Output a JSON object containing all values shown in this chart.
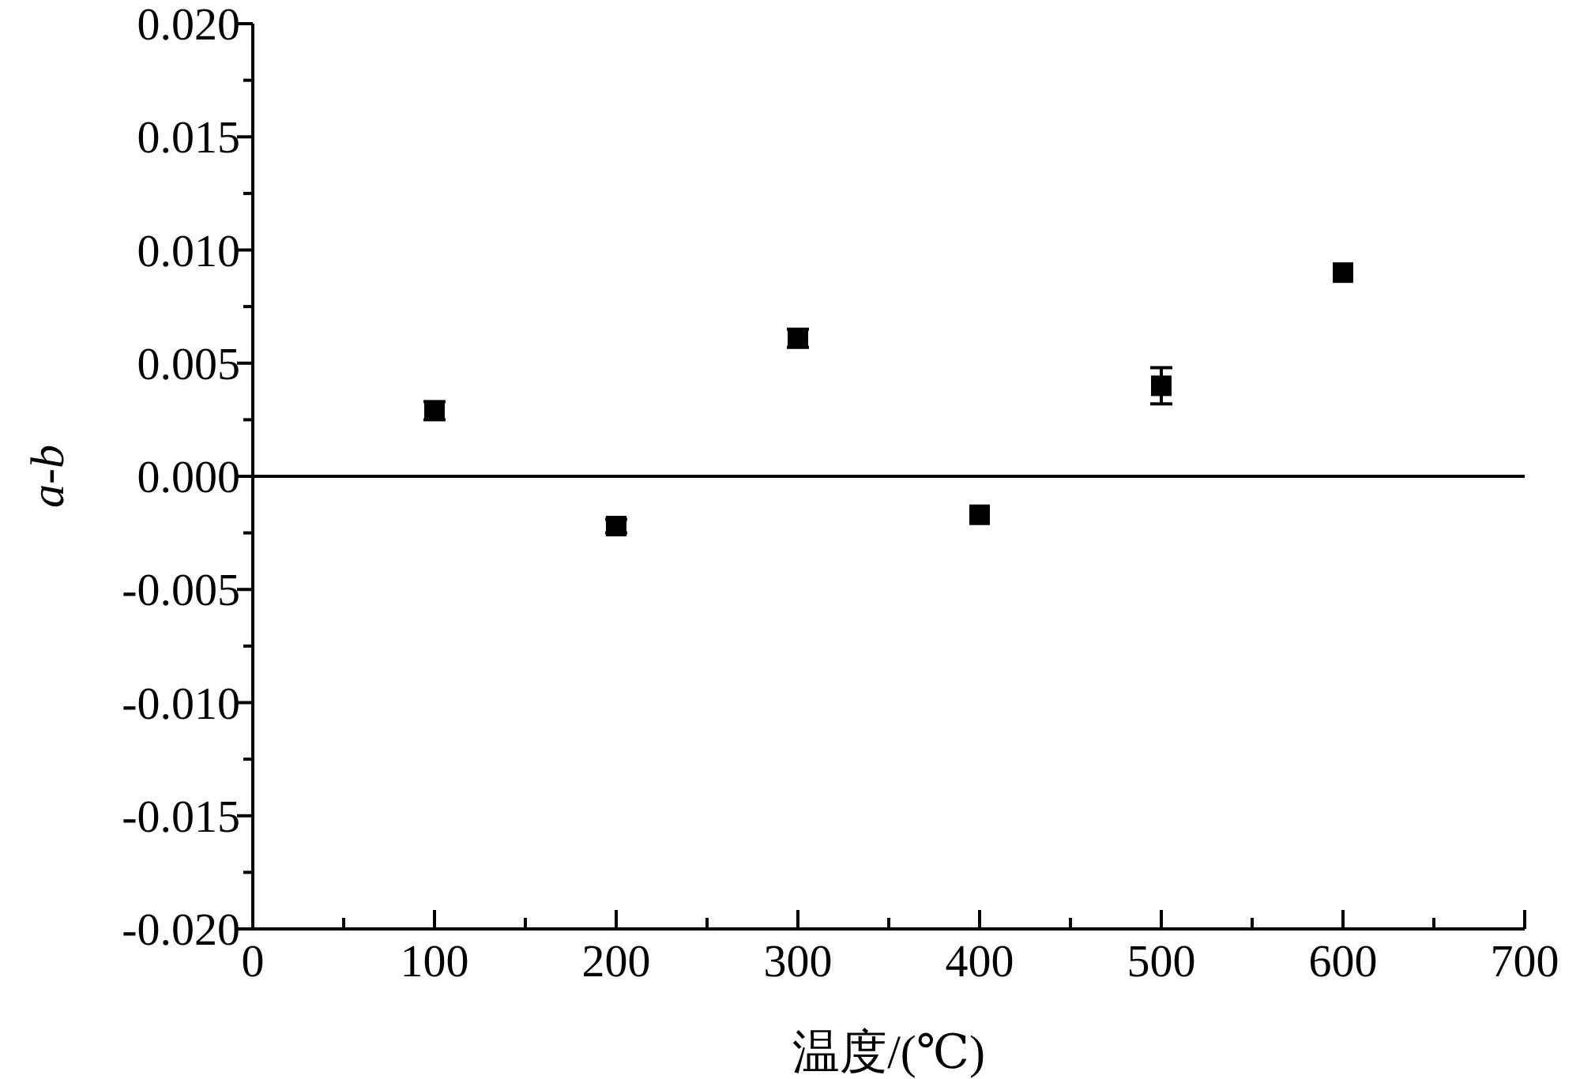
{
  "chart_data": {
    "type": "scatter",
    "xlabel": "温度/(℃)",
    "ylabel": "a-b",
    "x": [
      100,
      200,
      300,
      400,
      500,
      600
    ],
    "values": [
      0.0029,
      -0.0022,
      0.0061,
      -0.0017,
      0.004,
      0.009
    ],
    "errors": [
      0.0004,
      0.0003,
      0.0004,
      null,
      0.0008,
      null
    ],
    "color": "#000000",
    "marker": "square",
    "xlim": [
      0,
      700
    ],
    "xticks": [
      0,
      {
        "value": 50,
        "label": null
      },
      100,
      {
        "value": 150,
        "label": null
      },
      200,
      {
        "value": 250,
        "label": null
      },
      300,
      {
        "value": 350,
        "label": null
      },
      400,
      {
        "value": 450,
        "label": null
      },
      500,
      {
        "value": 550,
        "label": null
      },
      600,
      {
        "value": 650,
        "label": null
      },
      700
    ],
    "ylim": [
      -0.02,
      0.02
    ],
    "yticks": [
      {
        "value": -0.02,
        "label": "-0.020"
      },
      {
        "value": -0.0175,
        "label": null
      },
      {
        "value": -0.015,
        "label": "-0.015"
      },
      {
        "value": -0.0125,
        "label": null
      },
      {
        "value": -0.01,
        "label": "-0.010"
      },
      {
        "value": -0.0075,
        "label": null
      },
      {
        "value": -0.005,
        "label": "-0.005"
      },
      {
        "value": -0.0025,
        "label": null
      },
      {
        "value": 0,
        "label": "0.000"
      },
      {
        "value": 0.0025,
        "label": null
      },
      {
        "value": 0.005,
        "label": "0.005"
      },
      {
        "value": 0.0075,
        "label": null
      },
      {
        "value": 0.01,
        "label": "0.010"
      },
      {
        "value": 0.0125,
        "label": null
      },
      {
        "value": 0.015,
        "label": "0.015"
      },
      {
        "value": 0.0175,
        "label": null
      },
      {
        "value": 0.02,
        "label": "0.020"
      }
    ],
    "ref_lines": [
      {
        "axis": "y",
        "value": 0,
        "color": "#000000"
      }
    ]
  }
}
